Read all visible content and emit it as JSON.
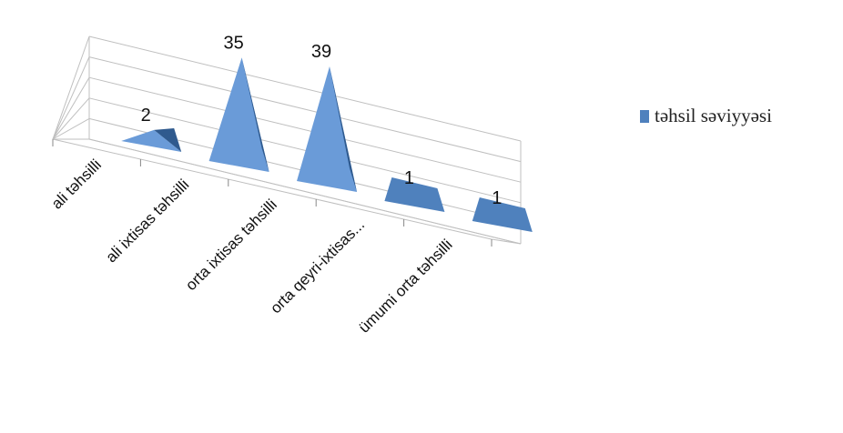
{
  "chart_data": {
    "type": "bar",
    "style": "3d-pyramid",
    "categories": [
      "ali təhsilli",
      "ali ixtisas təhsilli",
      "orta ixtisas təhsilli",
      "orta qeyri-ixtisas...",
      "ümumi orta təhsilli"
    ],
    "series": [
      {
        "name": "təhsil səviyyəsi",
        "values": [
          2,
          35,
          39,
          1,
          1
        ],
        "color": "#4f81bd"
      }
    ],
    "data_labels": [
      "2",
      "35",
      "39",
      "1",
      "1"
    ],
    "ylim": [
      0,
      50
    ],
    "grid": true,
    "legend_position": "right"
  },
  "colors": {
    "series": "#4f81bd",
    "series_dark": "#2f5a8e",
    "series_light": "#6a9bd8",
    "grid": "#bfbfbf"
  }
}
